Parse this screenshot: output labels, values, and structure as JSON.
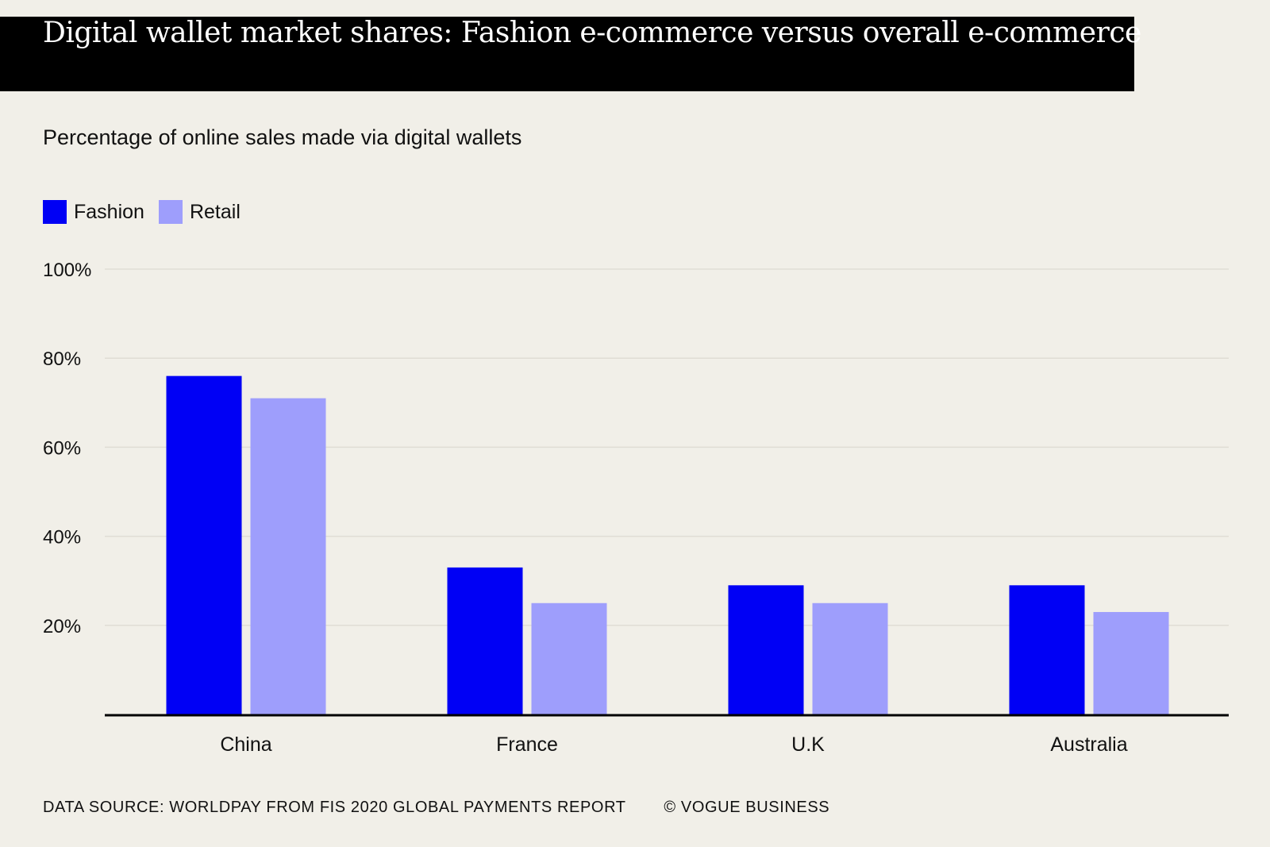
{
  "header": {
    "title": "Digital wallet market shares: Fashion e-commerce versus overall e-commerce"
  },
  "colors": {
    "background": "#f1efe8",
    "title_bar": "#000000",
    "fashion": "#0000f5",
    "retail": "#9e9efc",
    "gridline": "#e0ddd5",
    "axis": "#000000"
  },
  "footer": {
    "source": "DATA SOURCE: WORLDPAY FROM FIS 2020 GLOBAL PAYMENTS REPORT",
    "copyright": "© VOGUE BUSINESS"
  },
  "chart_data": {
    "type": "bar",
    "title": "Digital wallet market shares: Fashion e-commerce versus overall e-commerce",
    "subtitle": "Percentage of online sales made via digital wallets",
    "xlabel": "",
    "ylabel": "",
    "categories": [
      "China",
      "France",
      "U.K",
      "Australia"
    ],
    "series": [
      {
        "name": "Fashion",
        "values": [
          76,
          33,
          29,
          29
        ]
      },
      {
        "name": "Retail",
        "values": [
          71,
          25,
          25,
          23
        ]
      }
    ],
    "ylim": [
      0,
      100
    ],
    "yticks": [
      20,
      40,
      60,
      80,
      100
    ],
    "ytick_labels": [
      "20%",
      "40%",
      "60%",
      "80%",
      "100%"
    ],
    "grid": true,
    "legend": "top-left"
  }
}
